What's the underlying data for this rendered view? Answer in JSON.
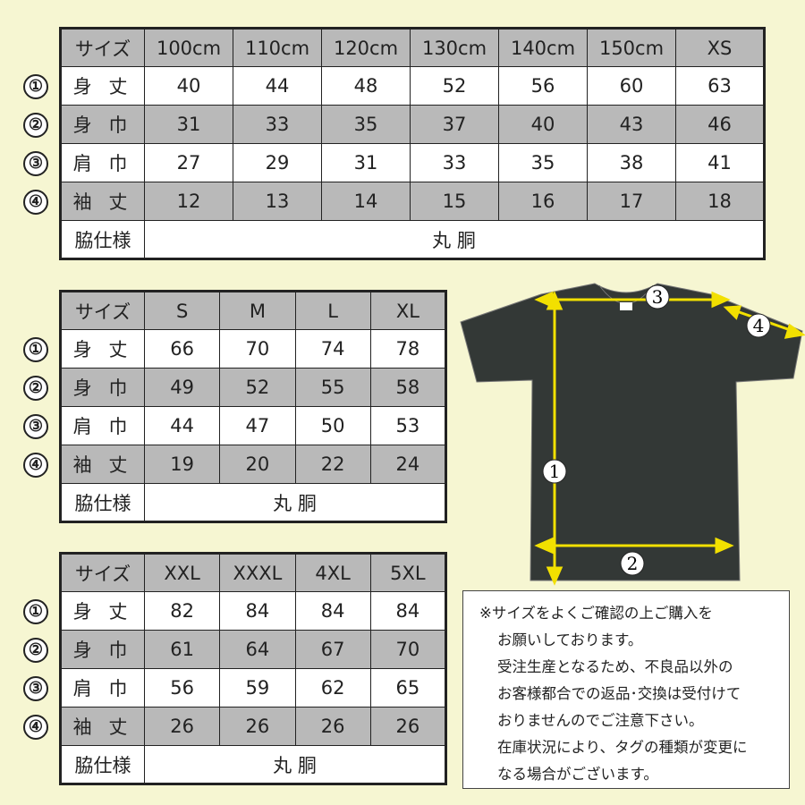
{
  "row_markers": [
    "①",
    "②",
    "③",
    "④"
  ],
  "row_labels": [
    "サイズ",
    "身 丈",
    "身 巾",
    "肩 巾",
    "袖 丈",
    "脇仕様"
  ],
  "side_spec": "丸 胴",
  "table1": {
    "sizes": [
      "100cm",
      "110cm",
      "120cm",
      "130cm",
      "140cm",
      "150cm",
      "XS"
    ],
    "rows": [
      [
        "40",
        "44",
        "48",
        "52",
        "56",
        "60",
        "63"
      ],
      [
        "31",
        "33",
        "35",
        "37",
        "40",
        "43",
        "46"
      ],
      [
        "27",
        "29",
        "31",
        "33",
        "35",
        "38",
        "41"
      ],
      [
        "12",
        "13",
        "14",
        "15",
        "16",
        "17",
        "18"
      ]
    ]
  },
  "table2": {
    "sizes": [
      "S",
      "M",
      "L",
      "XL"
    ],
    "rows": [
      [
        "66",
        "70",
        "74",
        "78"
      ],
      [
        "49",
        "52",
        "55",
        "58"
      ],
      [
        "44",
        "47",
        "50",
        "53"
      ],
      [
        "19",
        "20",
        "22",
        "24"
      ]
    ]
  },
  "table3": {
    "sizes": [
      "XXL",
      "XXXL",
      "4XL",
      "5XL"
    ],
    "rows": [
      [
        "82",
        "84",
        "84",
        "84"
      ],
      [
        "61",
        "64",
        "67",
        "70"
      ],
      [
        "56",
        "59",
        "62",
        "65"
      ],
      [
        "26",
        "26",
        "26",
        "26"
      ]
    ]
  },
  "diagram": {
    "markers": [
      "1",
      "2",
      "3",
      "4"
    ],
    "shirt_color": "#333836",
    "arrow_color": "#f2e000"
  },
  "notes": [
    "※サイズをよくご確認の上ご購入を",
    "お願いしております。",
    "受注生産となるため、不良品以外の",
    "お客様都合での返品･交換は受付けて",
    "おりませんのでご注意下さい。",
    "在庫状況により、タグの種類が変更に",
    "なる場合がございます。"
  ]
}
